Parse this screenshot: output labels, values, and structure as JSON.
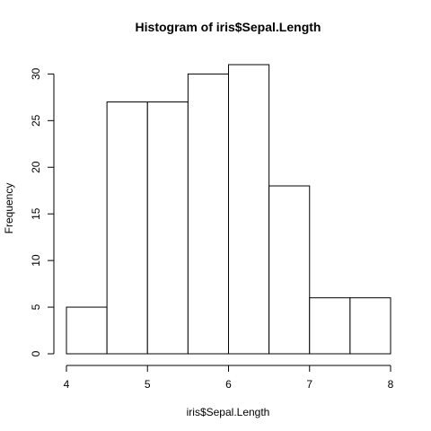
{
  "chart_data": {
    "type": "bar",
    "title": "Histogram of iris$Sepal.Length",
    "xlabel": "iris$Sepal.Length",
    "ylabel": "Frequency",
    "bins": [
      {
        "x0": 4.0,
        "x1": 4.5,
        "count": 5
      },
      {
        "x0": 4.5,
        "x1": 5.0,
        "count": 27
      },
      {
        "x0": 5.0,
        "x1": 5.5,
        "count": 27
      },
      {
        "x0": 5.5,
        "x1": 6.0,
        "count": 30
      },
      {
        "x0": 6.0,
        "x1": 6.5,
        "count": 31
      },
      {
        "x0": 6.5,
        "x1": 7.0,
        "count": 18
      },
      {
        "x0": 7.0,
        "x1": 7.5,
        "count": 6
      },
      {
        "x0": 7.5,
        "x1": 8.0,
        "count": 6
      }
    ],
    "xlim": [
      4,
      8
    ],
    "ylim": [
      0,
      31
    ],
    "xticks": [
      "4",
      "5",
      "6",
      "7",
      "8"
    ],
    "yticks": [
      "0",
      "5",
      "10",
      "15",
      "20",
      "25",
      "30"
    ],
    "grid": false,
    "legend": "none",
    "colors": {
      "bar_fill": "#ffffff",
      "bar_stroke": "#000000",
      "axis": "#000000",
      "text": "#000000"
    }
  }
}
